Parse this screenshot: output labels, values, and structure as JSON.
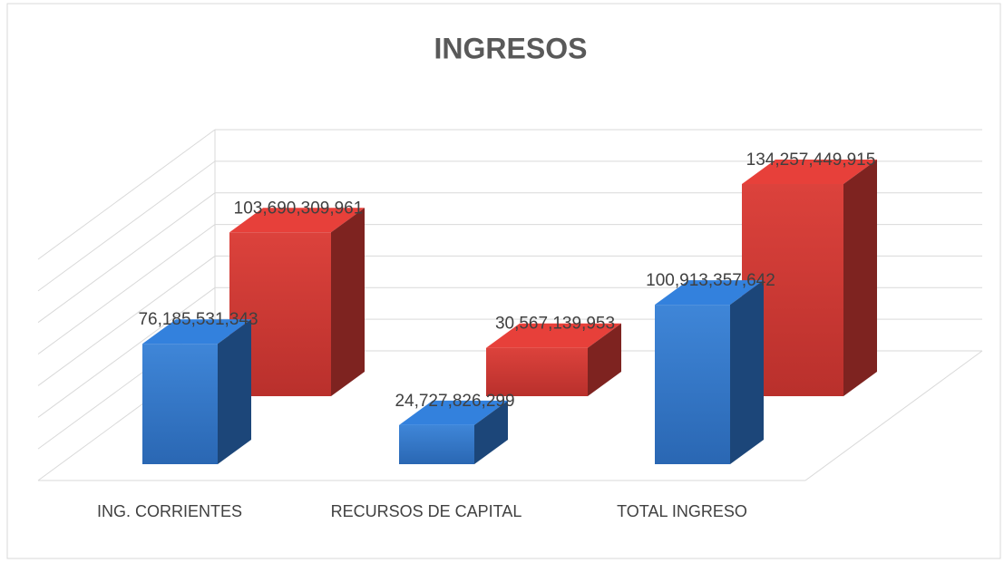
{
  "chart_data": {
    "type": "bar3d",
    "title": "INGRESOS",
    "categories": [
      "ING. CORRIENTES",
      "RECURSOS DE CAPITAL",
      "TOTAL INGRESO"
    ],
    "series": [
      {
        "color": "#2e75c9",
        "values": [
          76185531343,
          24727826299,
          100913357642
        ],
        "value_labels": [
          "76,185,531,343",
          "24,727,826,299",
          "100,913,357,642"
        ]
      },
      {
        "color": "#d23a35",
        "values": [
          103690309961,
          30567139953,
          134257449915
        ],
        "value_labels": [
          "103,690,309,961",
          "30,567,139,953",
          "134,257,449,915"
        ]
      }
    ],
    "ylim": [
      0,
      140000000000
    ],
    "yticks": [
      0,
      20000000000,
      40000000000,
      60000000000,
      80000000000,
      100000000000,
      120000000000,
      140000000000
    ],
    "grid": true
  }
}
